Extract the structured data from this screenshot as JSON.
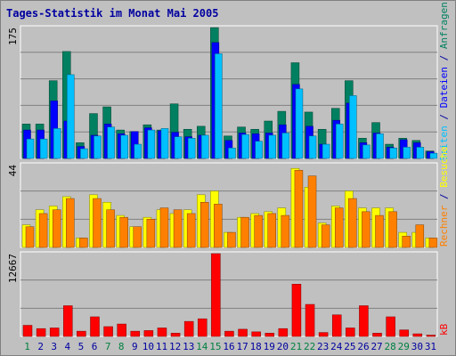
{
  "title": "Tages-Statistik im Monat Mai 2005",
  "colors": {
    "background": "#c0c0c0",
    "plot_bg": "#c0c0c0",
    "gridline": "#808080",
    "anfragen": "#008060",
    "dateien": "#0000ff",
    "seiten": "#00c0ff",
    "besuche": "#ffff00",
    "rechner": "#ff8000",
    "kb": "#ff0000",
    "weekend_label": "#008040",
    "weekday_label": "#0000a0",
    "title": "#0000a0"
  },
  "right_labels": {
    "top": [
      "Anfragen",
      " / ",
      "Dateien",
      " / ",
      "Seiten"
    ],
    "middle": [
      "Besuche",
      " / ",
      "Rechner"
    ],
    "bottom": [
      "kB"
    ]
  },
  "chart_data": [
    {
      "type": "bar",
      "panel": "top",
      "ymax_label": "175",
      "ylim": [
        0,
        175
      ],
      "categories": [
        "1",
        "2",
        "3",
        "4",
        "5",
        "6",
        "7",
        "8",
        "9",
        "10",
        "11",
        "12",
        "13",
        "14",
        "15",
        "16",
        "17",
        "18",
        "19",
        "20",
        "21",
        "22",
        "23",
        "24",
        "25",
        "26",
        "27",
        "28",
        "29",
        "30",
        "31"
      ],
      "weekend_days": [
        "1",
        "7",
        "8",
        "14",
        "15",
        "21",
        "22",
        "28",
        "29"
      ],
      "series": [
        {
          "name": "Anfragen",
          "values": [
            46,
            46,
            104,
            143,
            21,
            60,
            69,
            38,
            36,
            45,
            38,
            73,
            39,
            43,
            175,
            30,
            42,
            39,
            50,
            63,
            128,
            62,
            39,
            67,
            104,
            27,
            48,
            19,
            27,
            24,
            10
          ]
        },
        {
          "name": "Dateien",
          "values": [
            38,
            38,
            77,
            50,
            16,
            31,
            46,
            33,
            36,
            41,
            37,
            35,
            29,
            31,
            155,
            24,
            34,
            33,
            34,
            45,
            99,
            43,
            19,
            51,
            74,
            21,
            34,
            15,
            25,
            21,
            9
          ]
        },
        {
          "name": "Seiten",
          "values": [
            26,
            26,
            40,
            112,
            13,
            30,
            42,
            31,
            19,
            38,
            40,
            29,
            27,
            31,
            140,
            14,
            32,
            23,
            31,
            34,
            93,
            30,
            19,
            46,
            84,
            18,
            33,
            14,
            15,
            15,
            7
          ]
        }
      ]
    },
    {
      "type": "bar",
      "panel": "middle",
      "ymax_label": "44",
      "ylim": [
        0,
        44
      ],
      "series": [
        {
          "name": "Besuche",
          "values": [
            12,
            20,
            22,
            27,
            5,
            28,
            24,
            17,
            11,
            16,
            20,
            18,
            20,
            28,
            30,
            8,
            16,
            18,
            19,
            21,
            42,
            32,
            13,
            22,
            30,
            21,
            21,
            21,
            8,
            8,
            5
          ]
        },
        {
          "name": "Rechner",
          "values": [
            11,
            18,
            20,
            26,
            5,
            26,
            20,
            16,
            11,
            15,
            21,
            20,
            18,
            24,
            23,
            8,
            16,
            17,
            18,
            17,
            41,
            38,
            12,
            21,
            26,
            19,
            17,
            19,
            6,
            12,
            5
          ]
        }
      ]
    },
    {
      "type": "bar",
      "panel": "bottom",
      "ymax_label": "12667",
      "ylim": [
        0,
        12667
      ],
      "series": [
        {
          "name": "kB",
          "values": [
            1700,
            1200,
            1300,
            4700,
            800,
            3000,
            1500,
            1900,
            800,
            900,
            1300,
            500,
            2300,
            2700,
            12667,
            800,
            1100,
            700,
            500,
            1200,
            8000,
            4900,
            600,
            3300,
            1300,
            4700,
            500,
            3000,
            1000,
            400,
            200
          ]
        }
      ]
    }
  ]
}
